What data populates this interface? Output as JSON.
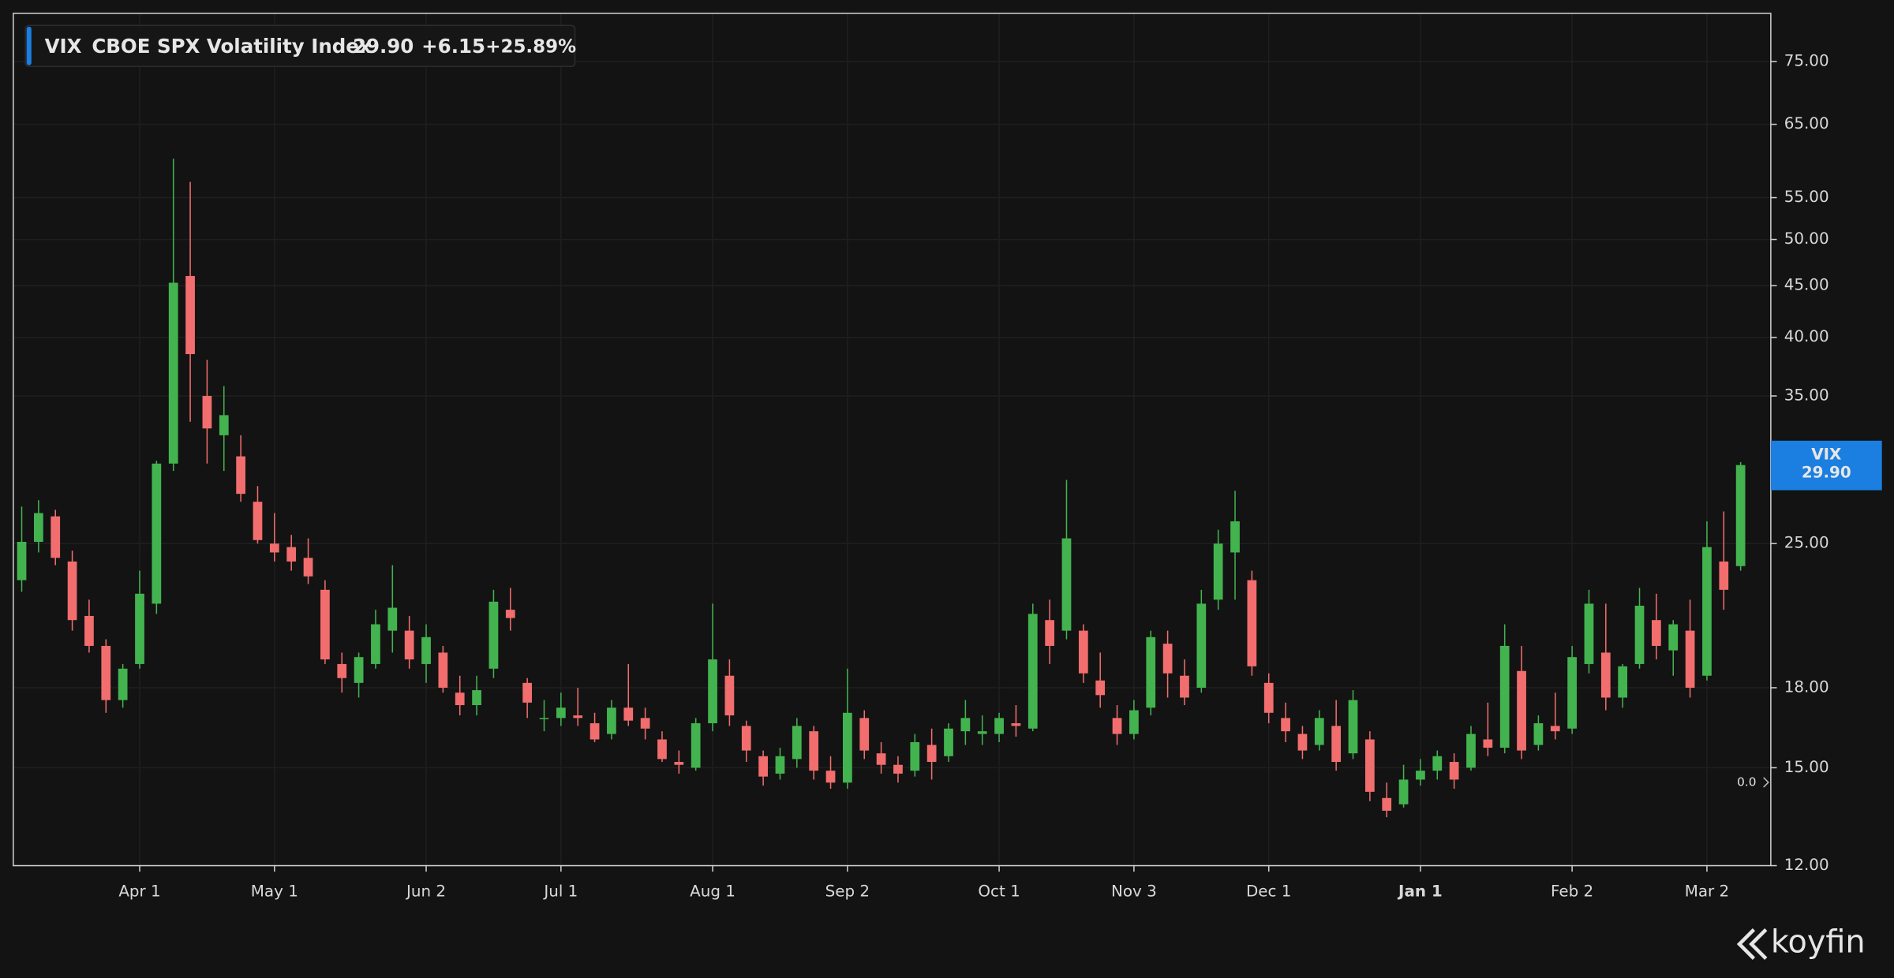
{
  "chart_data": {
    "type": "candlestick",
    "log_scale": true,
    "grid": true,
    "up_color": "#43b34f",
    "down_color": "#f26d6d",
    "header": {
      "symbol": "VIX",
      "name": "CBOE SPX Volatility Index",
      "last": "29.90",
      "change": "+6.15",
      "change_pct": "+25.89%"
    },
    "price_tag": {
      "symbol": "VIX",
      "value": "29.90",
      "color": "#1a7fe0"
    },
    "side_note": "0.0",
    "brand": "koyfin",
    "ylim": [
      12,
      83.7
    ],
    "yticks": [
      {
        "value": 12,
        "label": "12.00"
      },
      {
        "value": 15,
        "label": "15.00"
      },
      {
        "value": 18,
        "label": "18.00"
      },
      {
        "value": 25,
        "label": "25.00"
      },
      {
        "value": 35,
        "label": "35.00"
      },
      {
        "value": 40,
        "label": "40.00"
      },
      {
        "value": 45,
        "label": "45.00"
      },
      {
        "value": 50,
        "label": "50.00"
      },
      {
        "value": 55,
        "label": "55.00"
      },
      {
        "value": 65,
        "label": "65.00"
      },
      {
        "value": 75,
        "label": "75.00"
      }
    ],
    "bold_category": "Jan 1",
    "categories": [
      null,
      null,
      null,
      null,
      null,
      null,
      null,
      "Apr 1",
      null,
      null,
      null,
      null,
      null,
      null,
      null,
      "May 1",
      null,
      null,
      null,
      null,
      null,
      null,
      null,
      null,
      "Jun 2",
      null,
      null,
      null,
      null,
      null,
      null,
      null,
      "Jul 1",
      null,
      null,
      null,
      null,
      null,
      null,
      null,
      null,
      "Aug 1",
      null,
      null,
      null,
      null,
      null,
      null,
      null,
      "Sep 2",
      null,
      null,
      null,
      null,
      null,
      null,
      null,
      null,
      "Oct 1",
      null,
      null,
      null,
      null,
      null,
      null,
      null,
      "Nov 3",
      null,
      null,
      null,
      null,
      null,
      null,
      null,
      "Dec 1",
      null,
      null,
      null,
      null,
      null,
      null,
      null,
      null,
      "Jan 1",
      null,
      null,
      null,
      null,
      null,
      null,
      null,
      null,
      "Feb 2",
      null,
      null,
      null,
      null,
      null,
      null,
      null,
      "Mar 2",
      null,
      null
    ],
    "open": [
      23.0,
      25.1,
      26.6,
      24.0,
      21.2,
      19.8,
      17.5,
      19.0,
      21.8,
      30.0,
      46.0,
      35.0,
      32.0,
      30.5,
      27.5,
      25.0,
      24.8,
      24.2,
      22.5,
      19.0,
      18.2,
      19.0,
      20.5,
      20.5,
      19.0,
      19.5,
      17.8,
      17.3,
      18.8,
      21.5,
      18.2,
      16.8,
      16.8,
      16.9,
      16.6,
      16.2,
      17.2,
      16.8,
      16.0,
      15.2,
      15.0,
      16.6,
      18.5,
      16.5,
      15.4,
      14.8,
      15.3,
      16.3,
      14.9,
      14.5,
      16.8,
      15.5,
      15.1,
      14.9,
      15.8,
      15.4,
      16.3,
      16.2,
      16.2,
      16.6,
      16.4,
      21.0,
      20.5,
      20.5,
      18.3,
      16.8,
      16.2,
      17.2,
      19.9,
      18.5,
      18.0,
      22.0,
      24.5,
      23.0,
      18.2,
      16.8,
      16.2,
      15.8,
      16.5,
      15.5,
      16.0,
      14.0,
      13.8,
      14.6,
      14.9,
      15.2,
      15.0,
      16.0,
      15.7,
      18.7,
      15.8,
      16.5,
      16.4,
      19.0,
      19.5,
      17.6,
      19.0,
      21.0,
      19.6,
      20.5,
      18.5,
      24.0,
      23.75
    ],
    "high": [
      27.2,
      27.6,
      27.0,
      24.6,
      22.0,
      20.1,
      19.0,
      23.5,
      30.2,
      60.1,
      57.0,
      38.0,
      35.8,
      32.0,
      28.5,
      26.8,
      25.5,
      25.3,
      23.0,
      19.5,
      19.5,
      21.5,
      23.8,
      21.2,
      20.8,
      19.8,
      18.5,
      18.5,
      22.5,
      22.6,
      18.4,
      17.5,
      17.8,
      18.0,
      17.0,
      17.5,
      19.0,
      17.2,
      16.3,
      15.6,
      16.8,
      21.8,
      19.2,
      16.7,
      15.6,
      15.7,
      16.8,
      16.5,
      15.4,
      18.8,
      17.1,
      15.9,
      15.4,
      16.2,
      16.4,
      16.6,
      17.5,
      16.9,
      17.0,
      17.3,
      21.8,
      22.0,
      28.9,
      20.8,
      19.5,
      17.3,
      17.5,
      20.5,
      20.5,
      19.2,
      22.5,
      25.8,
      28.2,
      23.5,
      18.6,
      17.4,
      16.5,
      17.1,
      17.5,
      17.9,
      16.3,
      14.5,
      15.1,
      15.3,
      15.6,
      15.5,
      16.5,
      17.4,
      20.8,
      19.8,
      16.9,
      17.8,
      19.8,
      22.5,
      21.8,
      19.0,
      22.6,
      22.3,
      21.0,
      22.0,
      26.3,
      26.9,
      30.1
    ],
    "low": [
      22.4,
      24.5,
      23.8,
      20.5,
      19.5,
      17.0,
      17.2,
      18.8,
      21.3,
      29.5,
      33.0,
      30.0,
      29.5,
      27.5,
      25.0,
      24.0,
      23.5,
      22.8,
      19.0,
      17.8,
      17.6,
      18.8,
      19.5,
      18.8,
      18.2,
      17.8,
      16.9,
      16.9,
      18.4,
      20.5,
      16.8,
      16.3,
      16.5,
      16.5,
      15.9,
      16.0,
      16.5,
      16.0,
      15.2,
      14.8,
      14.9,
      16.3,
      16.5,
      15.2,
      14.4,
      14.6,
      15.0,
      14.6,
      14.3,
      14.3,
      15.3,
      14.8,
      14.5,
      14.7,
      14.6,
      15.2,
      15.8,
      15.8,
      15.9,
      16.1,
      16.3,
      19.0,
      20.1,
      18.2,
      17.2,
      15.8,
      16.0,
      16.9,
      17.6,
      17.3,
      17.8,
      21.5,
      22.0,
      18.5,
      16.6,
      15.9,
      15.3,
      15.6,
      14.9,
      15.3,
      13.9,
      13.4,
      13.7,
      14.4,
      14.6,
      14.3,
      14.9,
      15.4,
      15.5,
      15.3,
      15.6,
      16.0,
      16.2,
      18.6,
      17.1,
      17.2,
      18.8,
      19.2,
      18.5,
      17.6,
      18.3,
      21.5,
      23.5
    ],
    "close": [
      25.1,
      26.8,
      24.2,
      21.0,
      19.8,
      17.5,
      18.8,
      22.3,
      30.0,
      45.3,
      38.5,
      32.5,
      33.5,
      28.0,
      25.2,
      24.5,
      24.0,
      23.2,
      19.2,
      18.4,
      19.3,
      20.8,
      21.6,
      19.2,
      20.2,
      18.0,
      17.3,
      17.9,
      21.9,
      21.1,
      17.4,
      16.8,
      17.2,
      16.8,
      16.0,
      17.2,
      16.7,
      16.4,
      15.3,
      15.1,
      16.6,
      19.2,
      16.9,
      15.6,
      14.7,
      15.4,
      16.5,
      14.9,
      14.5,
      17.0,
      15.6,
      15.1,
      14.8,
      15.9,
      15.2,
      16.4,
      16.8,
      16.3,
      16.8,
      16.5,
      21.3,
      19.8,
      25.3,
      18.6,
      17.7,
      16.2,
      17.1,
      20.2,
      18.6,
      17.6,
      21.8,
      25.0,
      26.3,
      18.9,
      17.0,
      16.3,
      15.6,
      16.8,
      15.2,
      17.5,
      14.2,
      13.6,
      14.6,
      14.9,
      15.4,
      14.6,
      16.2,
      15.7,
      19.8,
      15.6,
      16.6,
      16.3,
      19.3,
      21.8,
      17.6,
      18.9,
      21.7,
      19.8,
      20.8,
      18.0,
      24.8,
      22.5,
      29.9
    ]
  }
}
